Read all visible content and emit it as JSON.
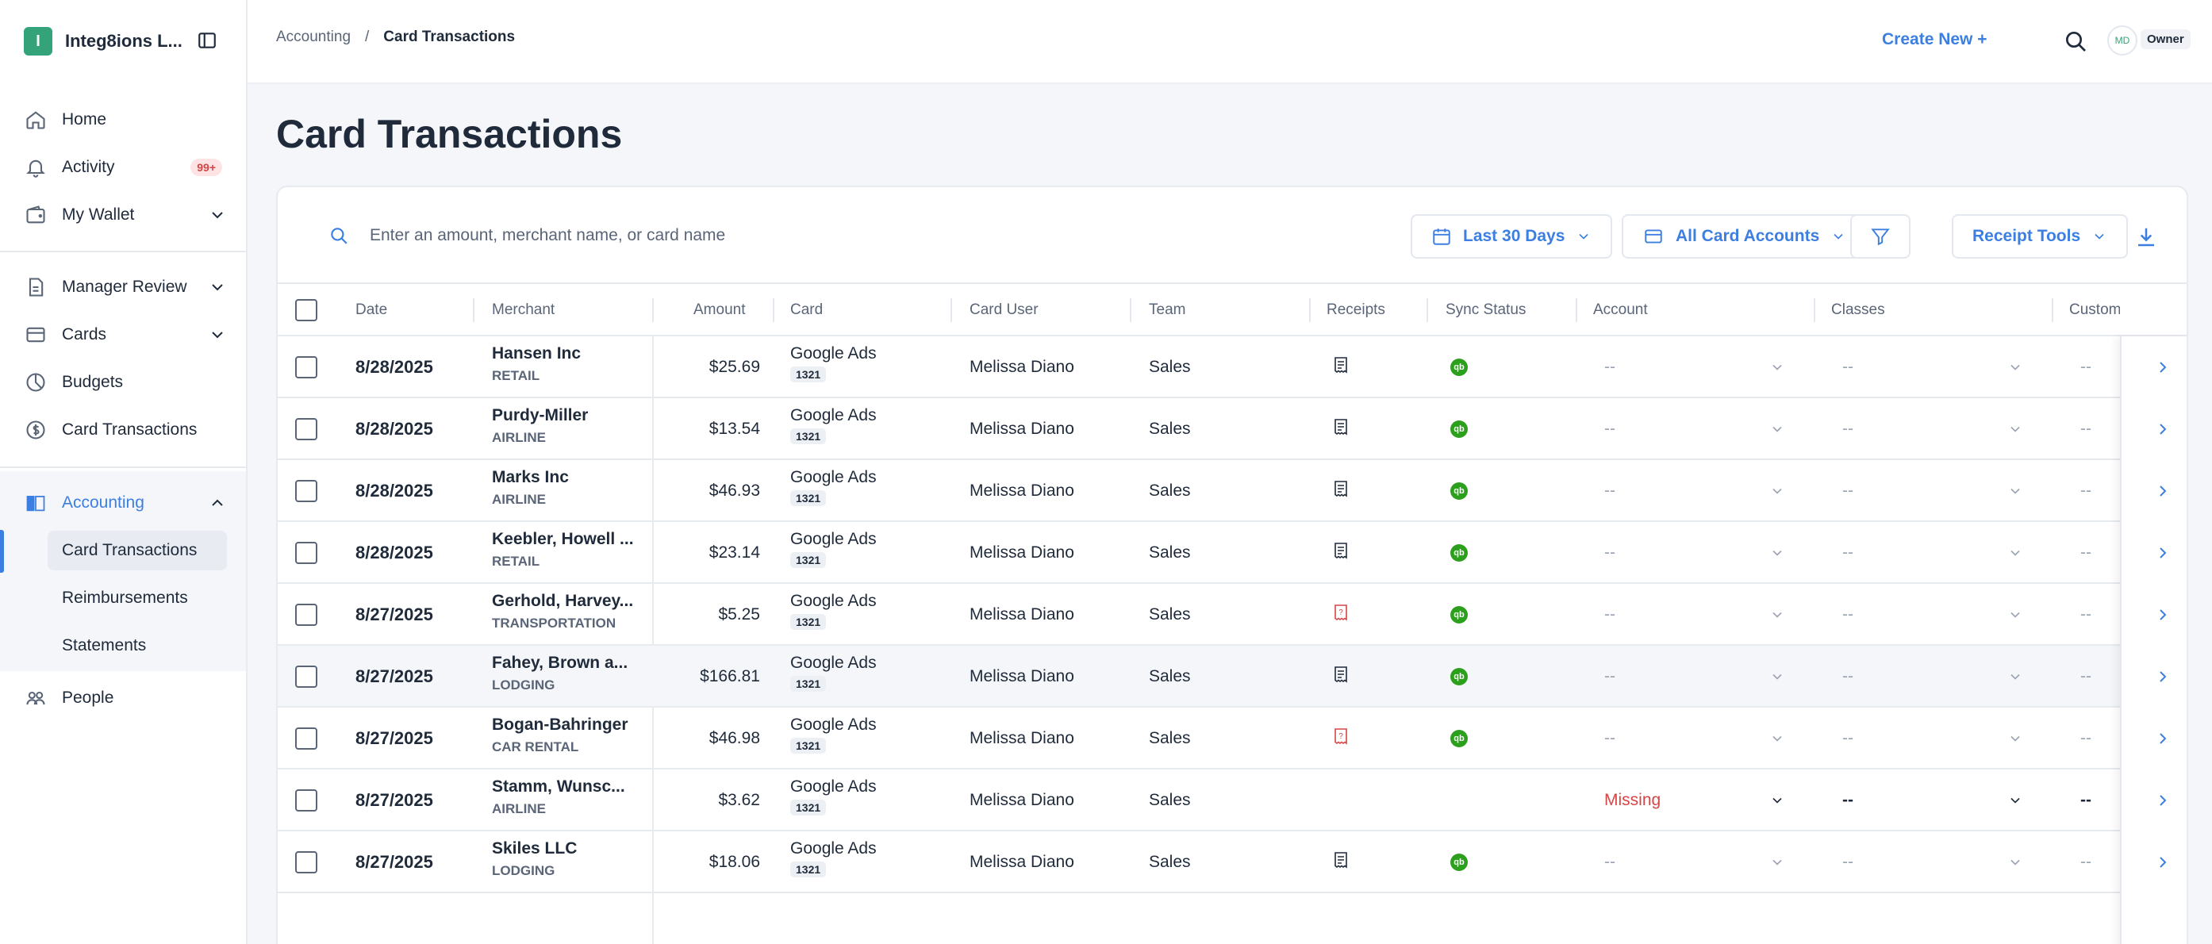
{
  "sidebar": {
    "org_initial": "I",
    "org_name": "Integ8ions L...",
    "items": [
      {
        "label": "Home",
        "icon": "home-icon"
      },
      {
        "label": "Activity",
        "icon": "bell-icon",
        "badge": "99+"
      },
      {
        "label": "My Wallet",
        "icon": "wallet-icon"
      },
      {
        "label": "Manager Review",
        "icon": "document-icon"
      },
      {
        "label": "Cards",
        "icon": "credit-card-icon"
      },
      {
        "label": "Budgets",
        "icon": "pie-chart-icon"
      },
      {
        "label": "Card Transactions",
        "icon": "dollar-circle-icon"
      },
      {
        "label": "Accounting",
        "icon": "book-icon"
      },
      {
        "label": "People",
        "icon": "people-icon"
      }
    ],
    "accounting_sub": [
      "Card Transactions",
      "Reimbursements",
      "Statements"
    ]
  },
  "header": {
    "breadcrumb_parent": "Accounting",
    "breadcrumb_sep": "/",
    "breadcrumb_current": "Card Transactions",
    "create_new": "Create New +",
    "avatar_initials": "MD",
    "role": "Owner"
  },
  "page_title": "Card Transactions",
  "toolbar": {
    "search_placeholder": "Enter an amount, merchant name, or card name",
    "date_filter": "Last 30 Days",
    "account_filter": "All Card Accounts",
    "receipt_tools": "Receipt Tools"
  },
  "columns": {
    "date": "Date",
    "merchant": "Merchant",
    "amount": "Amount",
    "card": "Card",
    "card_user": "Card User",
    "team": "Team",
    "receipts": "Receipts",
    "sync_status": "Sync Status",
    "account": "Account",
    "classes": "Classes",
    "custom": "Custom"
  },
  "rows": [
    {
      "date": "8/28/2025",
      "merchant": "Hansen Inc",
      "category": "RETAIL",
      "amount": "$25.69",
      "card": "Google Ads",
      "card_last": "1321",
      "user": "Melissa Diano",
      "team": "Sales",
      "receipt": "receipt",
      "account": "--",
      "classes": "--",
      "custom": "--"
    },
    {
      "date": "8/28/2025",
      "merchant": "Purdy-Miller",
      "category": "AIRLINE",
      "amount": "$13.54",
      "card": "Google Ads",
      "card_last": "1321",
      "user": "Melissa Diano",
      "team": "Sales",
      "receipt": "receipt",
      "account": "--",
      "classes": "--",
      "custom": "--"
    },
    {
      "date": "8/28/2025",
      "merchant": "Marks Inc",
      "category": "AIRLINE",
      "amount": "$46.93",
      "card": "Google Ads",
      "card_last": "1321",
      "user": "Melissa Diano",
      "team": "Sales",
      "receipt": "receipt",
      "account": "--",
      "classes": "--",
      "custom": "--"
    },
    {
      "date": "8/28/2025",
      "merchant": "Keebler, Howell ...",
      "category": "RETAIL",
      "amount": "$23.14",
      "card": "Google Ads",
      "card_last": "1321",
      "user": "Melissa Diano",
      "team": "Sales",
      "receipt": "receipt",
      "account": "--",
      "classes": "--",
      "custom": "--"
    },
    {
      "date": "8/27/2025",
      "merchant": "Gerhold, Harvey...",
      "category": "TRANSPORTATION",
      "amount": "$5.25",
      "card": "Google Ads",
      "card_last": "1321",
      "user": "Melissa Diano",
      "team": "Sales",
      "receipt": "missing",
      "account": "--",
      "classes": "--",
      "custom": "--"
    },
    {
      "date": "8/27/2025",
      "merchant": "Fahey, Brown a...",
      "category": "LODGING",
      "amount": "$166.81",
      "card": "Google Ads",
      "card_last": "1321",
      "user": "Melissa Diano",
      "team": "Sales",
      "receipt": "receipt",
      "account": "--",
      "classes": "--",
      "custom": "--"
    },
    {
      "date": "8/27/2025",
      "merchant": "Bogan-Bahringer",
      "category": "CAR RENTAL",
      "amount": "$46.98",
      "card": "Google Ads",
      "card_last": "1321",
      "user": "Melissa Diano",
      "team": "Sales",
      "receipt": "missing",
      "account": "--",
      "classes": "--",
      "custom": "--"
    },
    {
      "date": "8/27/2025",
      "merchant": "Stamm, Wunsc...",
      "category": "AIRLINE",
      "amount": "$3.62",
      "card": "Google Ads",
      "card_last": "1321",
      "user": "Melissa Diano",
      "team": "Sales",
      "receipt": "none",
      "account": "Missing",
      "classes": "--",
      "custom": "--"
    },
    {
      "date": "8/27/2025",
      "merchant": "Skiles LLC",
      "category": "LODGING",
      "amount": "$18.06",
      "card": "Google Ads",
      "card_last": "1321",
      "user": "Melissa Diano",
      "team": "Sales",
      "receipt": "receipt",
      "account": "--",
      "classes": "--",
      "custom": "--"
    }
  ],
  "colors": {
    "accent": "#3d7fe0",
    "brand_green": "#34a37a",
    "danger": "#d64545",
    "quickbooks_green": "#2ca01c"
  }
}
